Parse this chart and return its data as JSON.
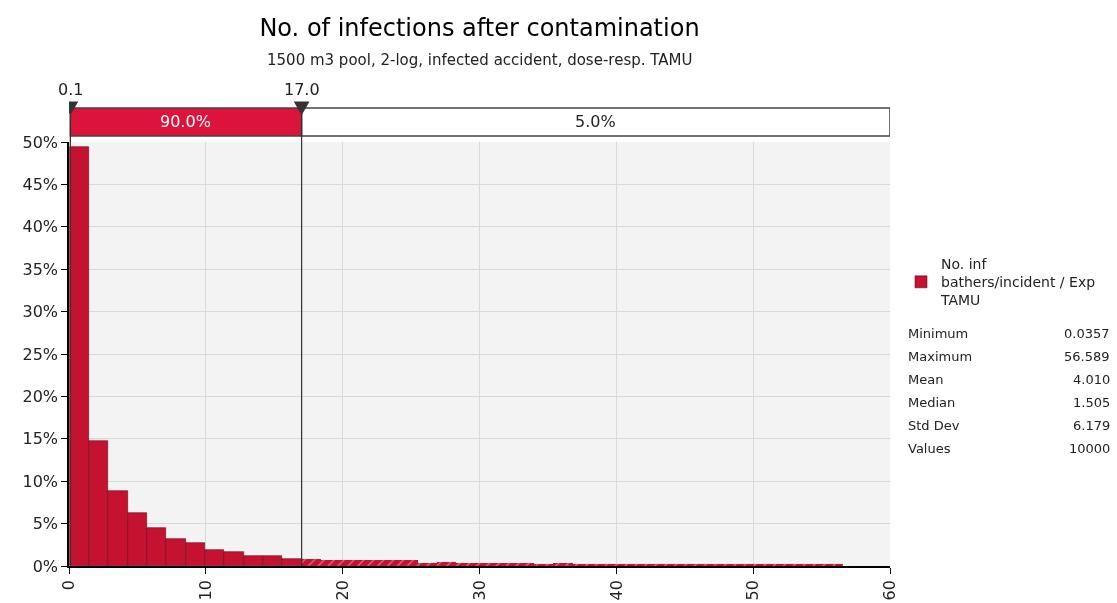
{
  "chart_data": {
    "type": "histogram",
    "title": "No. of infections after contamination",
    "subtitle": "1500 m3 pool, 2-log, infected accident, dose-resp. TAMU",
    "bins": [
      0.04,
      1.45,
      2.86,
      4.28,
      5.69,
      7.1,
      8.52,
      9.93,
      11.35,
      12.76,
      14.17,
      15.59,
      17.0,
      18.42,
      19.83,
      21.24,
      22.66,
      24.07,
      25.48,
      26.9,
      28.31,
      29.73,
      31.14,
      32.55,
      33.97,
      35.38,
      36.8,
      38.21,
      39.62,
      41.04,
      42.45,
      43.86,
      45.28,
      46.69,
      48.11,
      49.52,
      50.93,
      52.35,
      53.76,
      55.18,
      56.59
    ],
    "series": [
      {
        "name": "No. inf bathers/incident / Exp TAMU",
        "color": "#c41230",
        "values": [
          49.4,
          14.7,
          8.9,
          6.2,
          4.5,
          3.2,
          2.7,
          1.9,
          1.7,
          1.2,
          1.2,
          0.8,
          0.8,
          0.7,
          0.7,
          0.7,
          0.7,
          0.7,
          0.3,
          0.5,
          0.3,
          0.3,
          0.3,
          0.3,
          0.2,
          0.3,
          0.2,
          0.2,
          0.2,
          0.2,
          0.2,
          0.2,
          0.2,
          0.2,
          0.2,
          0.2,
          0.2,
          0.2,
          0.2,
          0.2
        ]
      }
    ],
    "xlim": [
      0,
      60
    ],
    "xticks": [
      0,
      10,
      20,
      30,
      40,
      50,
      60
    ],
    "ylim": [
      0,
      50
    ],
    "yticks": [
      {
        "value": 0,
        "label": "0%"
      },
      {
        "value": 5,
        "label": "5%"
      },
      {
        "value": 10,
        "label": "10%"
      },
      {
        "value": 15,
        "label": "15%"
      },
      {
        "value": 20,
        "label": "20%"
      },
      {
        "value": 25,
        "label": "25%"
      },
      {
        "value": 30,
        "label": "30%"
      },
      {
        "value": 35,
        "label": "35%"
      },
      {
        "value": 40,
        "label": "40%"
      },
      {
        "value": 45,
        "label": "45%"
      },
      {
        "value": 50,
        "label": "50%"
      }
    ],
    "grid": true,
    "legend": "right",
    "ref_lines": [
      {
        "axis": "x",
        "value": 0.1,
        "label": "0.1",
        "color": "#333333"
      },
      {
        "axis": "x",
        "value": 17.0,
        "label": "17.0",
        "color": "#333333"
      }
    ],
    "annotations": [
      "90.0%",
      "5.0%",
      "Minimum",
      "0.0357",
      "Maximum",
      "56.589",
      "Mean",
      "4.010",
      "Median",
      "1.505",
      "Std Dev",
      "6.179",
      "Values",
      "10000"
    ]
  }
}
